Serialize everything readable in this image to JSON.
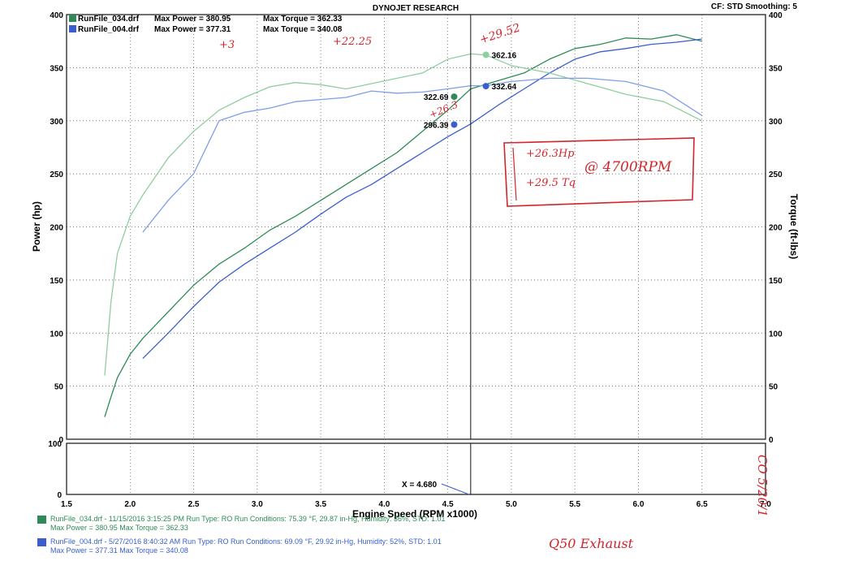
{
  "header": {
    "title": "DYNOJET RESEARCH",
    "settings": "CF: STD  Smoothing: 5"
  },
  "legend": [
    {
      "file": "RunFile_034.drf",
      "max_power_label": "Max Power = 380.95",
      "max_torque_label": "Max Torque = 362.33",
      "color": "#2e8b57"
    },
    {
      "file": "RunFile_004.drf",
      "max_power_label": "Max Power = 377.31",
      "max_torque_label": "Max Torque = 340.08",
      "color": "#3a5fcd"
    }
  ],
  "cursor_readout": "X = 4.680",
  "footer": [
    {
      "line1": "RunFile_034.drf - 11/15/2016 3:15:25 PM  Run Type: RO  Run Conditions: 75.39 °F, 29.87 in-Hg,  Humidity:  36%, STD: 1.01",
      "line2": "Max Power = 380.95  Max Torque = 362.33",
      "color": "#2e8b57"
    },
    {
      "line1": "RunFile_004.drf - 5/27/2016 8:40:32 AM  Run Type: RO  Run Conditions: 69.09 °F, 29.92 in-Hg,  Humidity:  52%, STD: 1.01",
      "line2": "Max Power = 377.31  Max Torque = 340.08",
      "color": "#3a5fcd"
    }
  ],
  "handwritten": {
    "plus3": "+3",
    "plus22": "+22.25",
    "plus2952": "+29.52",
    "plus263": "+26.3",
    "box_hp": "+26.3Hp",
    "box_tq": "+29.5 Tq",
    "box_rpm": "@ 4700RPM",
    "exhaust": "Q50 Exhaust",
    "side": "CO 5/20/1"
  },
  "colors": {
    "green": "#2e8b57",
    "light_green": "#8fce9e",
    "blue": "#3a5fcd",
    "light_blue": "#7f9ee8",
    "red": "#d2252c"
  },
  "chart_data": {
    "type": "line",
    "title": "DYNOJET RESEARCH",
    "xlabel": "Engine Speed (RPM x1000)",
    "ylabel": "Power (hp)",
    "y2label": "Torque (ft-lbs)",
    "xlim": [
      1.5,
      7.0
    ],
    "ylim": [
      0,
      400
    ],
    "y2lim": [
      0,
      400
    ],
    "x_ticks": [
      "1.5",
      "2.0",
      "2.5",
      "3.0",
      "3.5",
      "4.0",
      "4.5",
      "5.0",
      "5.5",
      "6.0",
      "6.5",
      "7.0"
    ],
    "y_ticks": [
      "0",
      "50",
      "100",
      "150",
      "200",
      "250",
      "300",
      "350",
      "400"
    ],
    "y2_ticks": [
      "0",
      "50",
      "100",
      "150",
      "200",
      "250",
      "300",
      "350",
      "400"
    ],
    "grid": true,
    "cursor_x": 4.68,
    "lower_panel": {
      "ylim": [
        0,
        100
      ],
      "y_ticks": [
        "0",
        "100"
      ]
    },
    "series": [
      {
        "name": "RunFile_034.drf Power",
        "color": "#2e8b57",
        "x": [
          1.8,
          1.85,
          1.9,
          2.0,
          2.1,
          2.3,
          2.5,
          2.7,
          2.9,
          3.1,
          3.3,
          3.5,
          3.7,
          3.9,
          4.1,
          4.3,
          4.5,
          4.68,
          4.9,
          5.1,
          5.3,
          5.5,
          5.7,
          5.9,
          6.1,
          6.3,
          6.5
        ],
        "y": [
          21,
          40,
          58,
          80,
          95,
          120,
          145,
          165,
          180,
          197,
          210,
          225,
          240,
          255,
          270,
          290,
          310,
          330,
          338,
          345,
          358,
          368,
          372,
          378,
          377,
          381,
          375
        ]
      },
      {
        "name": "RunFile_004.drf Power",
        "color": "#3a5fcd",
        "x": [
          2.1,
          2.3,
          2.5,
          2.7,
          2.9,
          3.1,
          3.3,
          3.5,
          3.7,
          3.9,
          4.1,
          4.3,
          4.5,
          4.68,
          4.9,
          5.1,
          5.3,
          5.5,
          5.7,
          5.9,
          6.1,
          6.3,
          6.5
        ],
        "y": [
          76,
          100,
          125,
          148,
          165,
          180,
          195,
          212,
          228,
          240,
          255,
          270,
          285,
          297,
          315,
          330,
          345,
          358,
          365,
          368,
          372,
          374,
          377
        ]
      },
      {
        "name": "RunFile_034.drf Torque",
        "color": "#8fce9e",
        "x": [
          1.8,
          1.85,
          1.9,
          2.0,
          2.1,
          2.3,
          2.5,
          2.7,
          2.9,
          3.1,
          3.3,
          3.5,
          3.7,
          3.9,
          4.1,
          4.3,
          4.5,
          4.68,
          4.8,
          5.0,
          5.3,
          5.6,
          5.9,
          6.2,
          6.5
        ],
        "y": [
          60,
          130,
          175,
          210,
          230,
          265,
          290,
          310,
          322,
          332,
          336,
          334,
          330,
          335,
          340,
          345,
          358,
          363,
          362,
          352,
          345,
          335,
          325,
          318,
          300
        ]
      },
      {
        "name": "RunFile_004.drf Torque",
        "color": "#7f9ee8",
        "x": [
          2.1,
          2.3,
          2.5,
          2.7,
          2.9,
          3.1,
          3.3,
          3.5,
          3.7,
          3.9,
          4.1,
          4.3,
          4.5,
          4.68,
          4.8,
          5.0,
          5.3,
          5.6,
          5.9,
          6.2,
          6.5
        ],
        "y": [
          195,
          225,
          250,
          300,
          308,
          312,
          318,
          320,
          322,
          328,
          326,
          327,
          330,
          333,
          333,
          337,
          340,
          340,
          337,
          328,
          305
        ]
      }
    ],
    "cursor_markers": [
      {
        "label": "362.16",
        "x": 4.8,
        "y": 362.16,
        "color": "#8fce9e"
      },
      {
        "label": "332.64",
        "x": 4.8,
        "y": 332.64,
        "color": "#3a5fcd"
      },
      {
        "label": "322.69",
        "x": 4.55,
        "y": 322.69,
        "color": "#2e8b57"
      },
      {
        "label": "296.39",
        "x": 4.55,
        "y": 296.39,
        "color": "#3a5fcd"
      }
    ]
  }
}
